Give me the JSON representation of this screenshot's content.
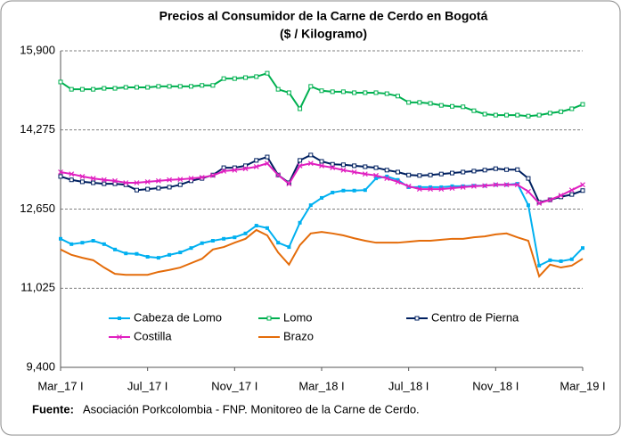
{
  "chart_data": {
    "type": "line",
    "title": "Precios al Consumidor  de la Carne de Cerdo en Bogotá",
    "subtitle": "($ / Kilogramo)",
    "categories": [
      "Mar_17 I",
      null,
      null,
      null,
      null,
      null,
      null,
      null,
      "Jul_17 I",
      null,
      null,
      null,
      null,
      null,
      null,
      null,
      "Nov_17 I",
      null,
      null,
      null,
      null,
      null,
      null,
      null,
      "Mar_18 I",
      null,
      null,
      null,
      null,
      null,
      null,
      null,
      "Jul_18 I",
      null,
      null,
      null,
      null,
      null,
      null,
      null,
      "Nov_18 I",
      null,
      null,
      null,
      null,
      null,
      null,
      null,
      "Mar_19 I"
    ],
    "ylim": [
      9400,
      15900
    ],
    "yticks": [
      {
        "value": 9400,
        "label": "9,400"
      },
      {
        "value": 11025,
        "label": "11,025"
      },
      {
        "value": 12650,
        "label": "12,650"
      },
      {
        "value": 14275,
        "label": "14,275"
      },
      {
        "value": 15900,
        "label": "15,900"
      }
    ],
    "grid": true,
    "series": [
      {
        "name": "Cabeza de Lomo",
        "color": "#00b0f0",
        "marker": "square-filled",
        "values": [
          12040,
          11930,
          11960,
          12000,
          11930,
          11820,
          11740,
          11730,
          11670,
          11650,
          11710,
          11760,
          11850,
          11950,
          12000,
          12040,
          12070,
          12150,
          12310,
          12260,
          11960,
          11870,
          12370,
          12730,
          12880,
          12990,
          13030,
          13030,
          13040,
          13280,
          13320,
          13250,
          13100,
          13100,
          13100,
          13100,
          13120,
          13120,
          13130,
          13130,
          13150,
          13150,
          13170,
          12730,
          11490,
          11600,
          11580,
          11620,
          11850
        ]
      },
      {
        "name": "Lomo",
        "color": "#00b050",
        "marker": "square-open",
        "values": [
          15260,
          15110,
          15110,
          15110,
          15130,
          15130,
          15150,
          15150,
          15150,
          15170,
          15170,
          15170,
          15170,
          15190,
          15190,
          15330,
          15330,
          15350,
          15370,
          15440,
          15110,
          15040,
          14710,
          15170,
          15080,
          15060,
          15060,
          15040,
          15040,
          15040,
          15020,
          14970,
          14840,
          14840,
          14820,
          14780,
          14760,
          14750,
          14670,
          14600,
          14580,
          14580,
          14580,
          14560,
          14580,
          14620,
          14650,
          14710,
          14800
        ]
      },
      {
        "name": "Centro de Pierna",
        "color": "#002060",
        "marker": "square-open",
        "values": [
          13320,
          13250,
          13210,
          13190,
          13170,
          13170,
          13150,
          13040,
          13060,
          13080,
          13100,
          13150,
          13230,
          13280,
          13350,
          13500,
          13500,
          13540,
          13650,
          13720,
          13350,
          13190,
          13650,
          13760,
          13630,
          13570,
          13560,
          13540,
          13520,
          13500,
          13450,
          13410,
          13350,
          13340,
          13350,
          13370,
          13390,
          13410,
          13430,
          13450,
          13480,
          13460,
          13460,
          13280,
          12790,
          12840,
          12900,
          12950,
          13030
        ]
      },
      {
        "name": "Costilla",
        "color": "#e020c0",
        "marker": "x",
        "values": [
          13410,
          13370,
          13320,
          13280,
          13250,
          13230,
          13190,
          13190,
          13210,
          13230,
          13250,
          13260,
          13280,
          13300,
          13340,
          13430,
          13450,
          13480,
          13520,
          13590,
          13350,
          13170,
          13540,
          13590,
          13540,
          13500,
          13450,
          13410,
          13370,
          13340,
          13280,
          13210,
          13120,
          13060,
          13060,
          13060,
          13080,
          13100,
          13120,
          13130,
          13150,
          13150,
          13150,
          13010,
          12770,
          12840,
          12930,
          13040,
          13150
        ]
      },
      {
        "name": "Brazo",
        "color": "#e46c0a",
        "marker": "none",
        "values": [
          11820,
          11710,
          11650,
          11600,
          11450,
          11320,
          11300,
          11300,
          11300,
          11360,
          11400,
          11450,
          11540,
          11630,
          11820,
          11870,
          11960,
          12040,
          12220,
          12110,
          11760,
          11510,
          11910,
          12150,
          12180,
          12150,
          12110,
          12050,
          12000,
          11960,
          11960,
          11960,
          11980,
          12000,
          12000,
          12020,
          12040,
          12040,
          12070,
          12090,
          12130,
          12150,
          12070,
          12000,
          11270,
          11510,
          11450,
          11490,
          11630
        ]
      }
    ],
    "source_label": "Fuente:",
    "source": "Asociación Porkcolombia - FNP.  Monitoreo de la Carne de Cerdo."
  }
}
